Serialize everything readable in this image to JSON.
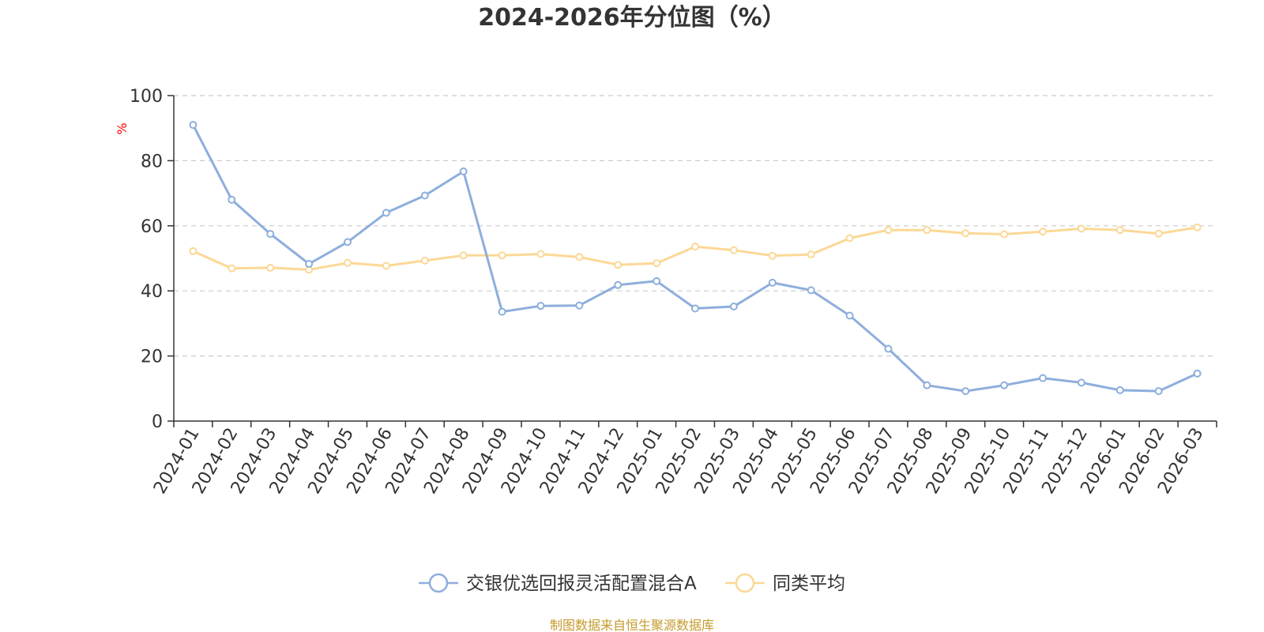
{
  "chart_data": {
    "type": "line",
    "title": "2024-2026年分位图（%）",
    "ylabel": "%",
    "ylim": [
      0,
      100
    ],
    "yticks": [
      0,
      20,
      40,
      60,
      80,
      100
    ],
    "grid": true,
    "legend_position": "bottom",
    "categories": [
      "2024-01",
      "2024-02",
      "2024-03",
      "2024-04",
      "2024-05",
      "2024-06",
      "2024-07",
      "2024-08",
      "2024-09",
      "2024-10",
      "2024-11",
      "2024-12",
      "2025-01",
      "2025-02",
      "2025-03",
      "2025-04",
      "2025-05",
      "2025-06",
      "2025-07",
      "2025-08",
      "2025-09",
      "2025-10",
      "2025-11",
      "2025-12",
      "2026-01",
      "2026-02",
      "2026-03"
    ],
    "series": [
      {
        "name": "交银优选回报灵活配置混合A",
        "color": "#8eaedc",
        "values": [
          91,
          68,
          57.5,
          48.3,
          55,
          64,
          69.3,
          76.7,
          33.6,
          35.4,
          35.5,
          41.8,
          43,
          34.6,
          35.2,
          42.5,
          40.2,
          32.4,
          22.2,
          11,
          9.2,
          11,
          13.2,
          11.8,
          9.5,
          9.2,
          14.6
        ]
      },
      {
        "name": "同类平均",
        "color": "#fbd896",
        "values": [
          52.2,
          46.9,
          47.1,
          46.5,
          48.6,
          47.7,
          49.3,
          50.9,
          50.9,
          51.3,
          50.4,
          48,
          48.5,
          53.6,
          52.5,
          50.8,
          51.2,
          56.2,
          58.7,
          58.7,
          57.7,
          57.4,
          58.2,
          59.1,
          58.7,
          57.6,
          59.5
        ]
      }
    ]
  },
  "source_text": "制图数据来自恒生聚源数据库",
  "colors": {
    "unit_label": "#ff0000",
    "source_text": "#c59a2b",
    "axis": "#333333",
    "grid": "#cccccc"
  }
}
